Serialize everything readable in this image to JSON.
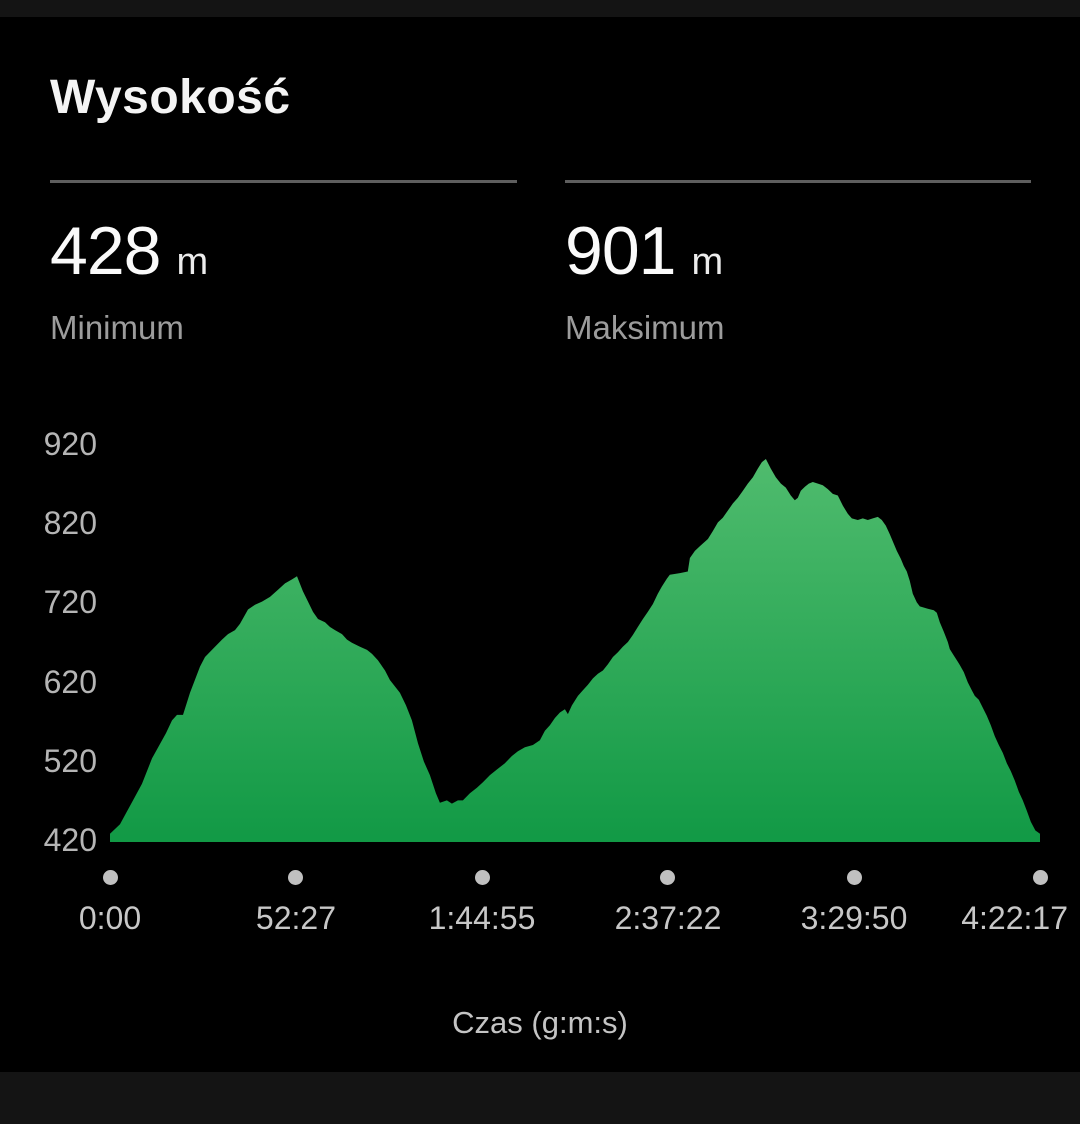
{
  "card": {
    "title": "Wysokość"
  },
  "stats": [
    {
      "value": "428",
      "unit": "m",
      "label": "Minimum"
    },
    {
      "value": "901",
      "unit": "m",
      "label": "Maksimum"
    }
  ],
  "chart_data": {
    "type": "area",
    "title": "Wysokość",
    "xlabel": "Czas (g:m:s)",
    "ylabel": "",
    "y_unit": "m",
    "ylim": [
      420,
      920
    ],
    "t_max": 15737,
    "grid": false,
    "legend": false,
    "colors": {
      "area_top": "#50bc6e",
      "area_bottom": "#119945",
      "dot": "#c0c0c0"
    },
    "y_ticks": [
      420,
      520,
      620,
      720,
      820,
      920
    ],
    "x_ticks": [
      {
        "label": "0:00",
        "t": 0
      },
      {
        "label": "52:27",
        "t": 3147
      },
      {
        "label": "1:44:55",
        "t": 6295
      },
      {
        "label": "2:37:22",
        "t": 9442
      },
      {
        "label": "3:29:50",
        "t": 12590
      },
      {
        "label": "4:22:17",
        "t": 15737
      }
    ],
    "series": [
      {
        "name": "Wysokość",
        "unit": "m",
        "points": [
          [
            0,
            428
          ],
          [
            169,
            440
          ],
          [
            389,
            470
          ],
          [
            541,
            491
          ],
          [
            711,
            523
          ],
          [
            947,
            555
          ],
          [
            1049,
            571
          ],
          [
            1133,
            578
          ],
          [
            1235,
            578
          ],
          [
            1354,
            606
          ],
          [
            1523,
            639
          ],
          [
            1607,
            651
          ],
          [
            1777,
            664
          ],
          [
            1895,
            673
          ],
          [
            1997,
            680
          ],
          [
            2115,
            685
          ],
          [
            2200,
            693
          ],
          [
            2335,
            711
          ],
          [
            2453,
            717
          ],
          [
            2572,
            721
          ],
          [
            2707,
            727
          ],
          [
            2842,
            736
          ],
          [
            2961,
            744
          ],
          [
            3079,
            749
          ],
          [
            3164,
            753
          ],
          [
            3265,
            734
          ],
          [
            3350,
            721
          ],
          [
            3435,
            708
          ],
          [
            3519,
            699
          ],
          [
            3638,
            695
          ],
          [
            3722,
            689
          ],
          [
            3807,
            685
          ],
          [
            3925,
            680
          ],
          [
            4010,
            673
          ],
          [
            4094,
            669
          ],
          [
            4230,
            664
          ],
          [
            4348,
            660
          ],
          [
            4433,
            655
          ],
          [
            4534,
            647
          ],
          [
            4653,
            634
          ],
          [
            4737,
            622
          ],
          [
            4906,
            606
          ],
          [
            5008,
            590
          ],
          [
            5109,
            571
          ],
          [
            5211,
            542
          ],
          [
            5312,
            519
          ],
          [
            5414,
            502
          ],
          [
            5515,
            479
          ],
          [
            5583,
            467
          ],
          [
            5701,
            470
          ],
          [
            5786,
            466
          ],
          [
            5887,
            470
          ],
          [
            5972,
            470
          ],
          [
            6090,
            479
          ],
          [
            6209,
            486
          ],
          [
            6310,
            493
          ],
          [
            6429,
            502
          ],
          [
            6547,
            509
          ],
          [
            6682,
            517
          ],
          [
            6801,
            526
          ],
          [
            6902,
            532
          ],
          [
            7021,
            537
          ],
          [
            7156,
            540
          ],
          [
            7274,
            546
          ],
          [
            7359,
            558
          ],
          [
            7444,
            565
          ],
          [
            7528,
            574
          ],
          [
            7613,
            581
          ],
          [
            7697,
            585
          ],
          [
            7748,
            579
          ],
          [
            7816,
            590
          ],
          [
            7917,
            602
          ],
          [
            8002,
            609
          ],
          [
            8086,
            616
          ],
          [
            8171,
            624
          ],
          [
            8256,
            630
          ],
          [
            8340,
            634
          ],
          [
            8425,
            642
          ],
          [
            8509,
            651
          ],
          [
            8594,
            657
          ],
          [
            8678,
            664
          ],
          [
            8763,
            670
          ],
          [
            8848,
            679
          ],
          [
            8932,
            689
          ],
          [
            9017,
            699
          ],
          [
            9101,
            708
          ],
          [
            9186,
            718
          ],
          [
            9270,
            731
          ],
          [
            9338,
            740
          ],
          [
            9423,
            750
          ],
          [
            9473,
            755
          ],
          [
            9643,
            757
          ],
          [
            9778,
            759
          ],
          [
            9812,
            776
          ],
          [
            9897,
            785
          ],
          [
            9981,
            791
          ],
          [
            10117,
            800
          ],
          [
            10201,
            810
          ],
          [
            10286,
            821
          ],
          [
            10370,
            827
          ],
          [
            10455,
            836
          ],
          [
            10540,
            845
          ],
          [
            10624,
            852
          ],
          [
            10709,
            861
          ],
          [
            10793,
            870
          ],
          [
            10878,
            878
          ],
          [
            10962,
            889
          ],
          [
            11030,
            897
          ],
          [
            11098,
            901
          ],
          [
            11182,
            889
          ],
          [
            11267,
            878
          ],
          [
            11352,
            870
          ],
          [
            11436,
            865
          ],
          [
            11521,
            855
          ],
          [
            11588,
            849
          ],
          [
            11639,
            852
          ],
          [
            11690,
            861
          ],
          [
            11758,
            866
          ],
          [
            11825,
            870
          ],
          [
            11893,
            872
          ],
          [
            11978,
            870
          ],
          [
            12062,
            868
          ],
          [
            12147,
            863
          ],
          [
            12231,
            857
          ],
          [
            12316,
            855
          ],
          [
            12401,
            842
          ],
          [
            12485,
            832
          ],
          [
            12553,
            826
          ],
          [
            12654,
            824
          ],
          [
            12739,
            826
          ],
          [
            12823,
            824
          ],
          [
            12908,
            826
          ],
          [
            12993,
            828
          ],
          [
            13060,
            824
          ],
          [
            13128,
            817
          ],
          [
            13196,
            806
          ],
          [
            13263,
            794
          ],
          [
            13314,
            785
          ],
          [
            13382,
            775
          ],
          [
            13433,
            766
          ],
          [
            13483,
            759
          ],
          [
            13534,
            747
          ],
          [
            13585,
            731
          ],
          [
            13653,
            720
          ],
          [
            13703,
            715
          ],
          [
            13839,
            712
          ],
          [
            13940,
            710
          ],
          [
            13991,
            707
          ],
          [
            14042,
            695
          ],
          [
            14109,
            683
          ],
          [
            14177,
            670
          ],
          [
            14211,
            661
          ],
          [
            14279,
            653
          ],
          [
            14346,
            645
          ],
          [
            14380,
            641
          ],
          [
            14448,
            632
          ],
          [
            14515,
            619
          ],
          [
            14583,
            609
          ],
          [
            14634,
            602
          ],
          [
            14702,
            597
          ],
          [
            14769,
            587
          ],
          [
            14837,
            577
          ],
          [
            14904,
            565
          ],
          [
            14972,
            551
          ],
          [
            15040,
            540
          ],
          [
            15108,
            530
          ],
          [
            15175,
            517
          ],
          [
            15243,
            507
          ],
          [
            15311,
            495
          ],
          [
            15378,
            481
          ],
          [
            15446,
            470
          ],
          [
            15513,
            457
          ],
          [
            15581,
            443
          ],
          [
            15660,
            432
          ],
          [
            15737,
            428
          ]
        ]
      }
    ]
  }
}
